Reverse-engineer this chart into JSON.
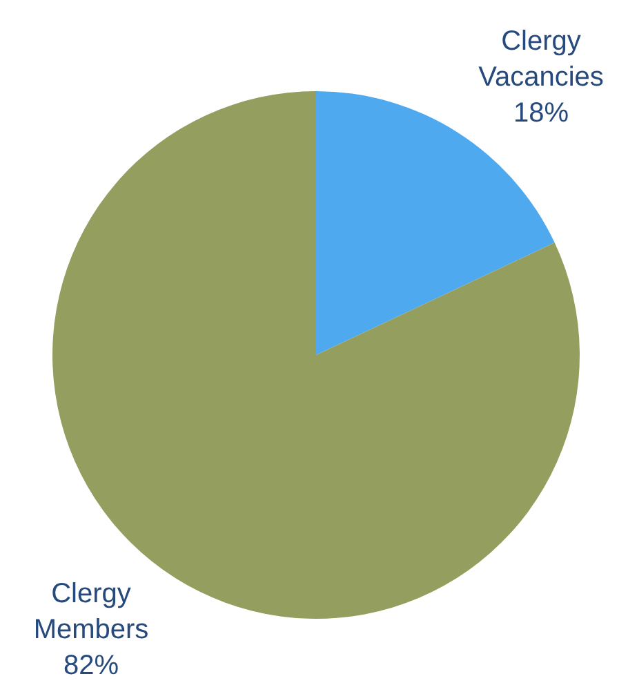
{
  "chart_data": {
    "type": "pie",
    "categories": [
      "Clergy Vacancies",
      "Clergy Members"
    ],
    "values": [
      18,
      82
    ],
    "colors": [
      "#4fa9ee",
      "#949e5f"
    ],
    "value_labels": [
      "18%",
      "82%"
    ],
    "legend": false
  }
}
